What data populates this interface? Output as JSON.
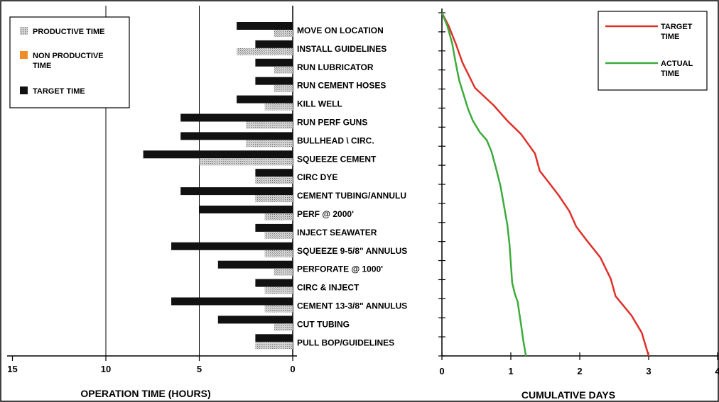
{
  "chart_data": [
    {
      "type": "bar",
      "orientation": "horizontal",
      "xlabel": "OPERATION TIME (HOURS)",
      "xlim": [
        15,
        0
      ],
      "xticks": [
        "15",
        "10",
        "5",
        "0"
      ],
      "categories": [
        "MOVE ON LOCATION",
        "INSTALL GUIDELINES",
        "RUN LUBRICATOR",
        "RUN CEMENT HOSES",
        "KILL WELL",
        "RUN PERF GUNS",
        "BULLHEAD \\ CIRC.",
        "SQUEEZE CEMENT",
        "CIRC DYE",
        "CEMENT TUBING/ANNULU",
        "PERF @ 2000'",
        "INJECT SEAWATER",
        "SQUEEZE 9-5/8\" ANNULUS",
        "PERFORATE @ 1000'",
        "CIRC & INJECT",
        "CEMENT 13-3/8\" ANNULUS",
        "CUT TUBING",
        "PULL BOP/GUIDELINES"
      ],
      "series": [
        {
          "name": "TARGET TIME",
          "color": "#111111",
          "values": [
            3,
            2,
            2,
            2,
            3,
            6,
            6,
            8,
            2,
            6,
            5,
            2,
            6.5,
            4,
            2,
            6.5,
            4,
            2
          ]
        },
        {
          "name": "PRODUCTIVE TIME",
          "color": "#9a9a9a",
          "values": [
            1,
            3,
            1,
            1,
            1.5,
            2.5,
            2.5,
            5,
            2,
            2,
            1.5,
            1.5,
            1.5,
            1,
            1.5,
            1.5,
            1,
            2
          ]
        },
        {
          "name": "NON PRODUCTIVE TIME",
          "color": "#f28c28",
          "values": [
            0,
            0,
            0,
            0,
            0,
            0,
            0,
            0,
            0,
            0,
            0,
            0,
            0,
            0,
            0,
            0,
            0,
            0
          ]
        }
      ],
      "legend": {
        "placement": "top-left"
      },
      "grid": true
    },
    {
      "type": "line",
      "xlabel": "CUMULATIVE DAYS",
      "xlim": [
        0,
        4
      ],
      "xticks": [
        "0",
        "1",
        "2",
        "3",
        "4"
      ],
      "y_categories_shared": true,
      "series": [
        {
          "name": "TARGET TIME",
          "color": "#e0302a",
          "x": [
            0,
            0.1,
            0.2,
            0.3,
            0.48,
            0.6,
            0.75,
            0.95,
            1.15,
            1.35,
            1.42,
            1.55,
            1.7,
            1.85,
            1.95,
            2.1,
            2.3,
            2.45,
            2.52,
            2.75,
            2.9,
            3.0
          ],
          "y": [
            0,
            0.7,
            1.6,
            2.6,
            3.9,
            4.3,
            4.8,
            5.6,
            6.3,
            7.3,
            8.2,
            8.8,
            9.5,
            10.3,
            11.1,
            11.8,
            12.7,
            13.8,
            14.7,
            15.7,
            16.6,
            17.8
          ]
        },
        {
          "name": "ACTUAL TIME",
          "color": "#3cab3c",
          "x": [
            0,
            0.08,
            0.15,
            0.2,
            0.25,
            0.32,
            0.38,
            0.45,
            0.55,
            0.65,
            0.72,
            0.78,
            0.85,
            0.9,
            0.95,
            0.98,
            1.0,
            1.02,
            1.06,
            1.1,
            1.12,
            1.15,
            1.18,
            1.22
          ],
          "y": [
            0,
            0.7,
            1.6,
            2.6,
            3.5,
            4.3,
            5.0,
            5.6,
            6.2,
            6.6,
            7.2,
            8.0,
            9.0,
            10.0,
            11.0,
            12.0,
            13.0,
            14.0,
            14.6,
            15.0,
            15.5,
            16.2,
            17.0,
            17.8
          ]
        }
      ],
      "legend": {
        "placement": "top-right"
      }
    }
  ]
}
